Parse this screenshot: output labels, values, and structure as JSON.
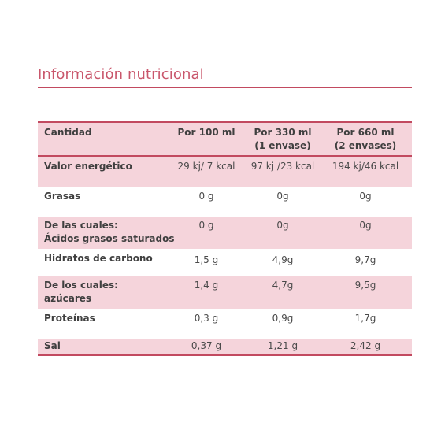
{
  "title": "Información nutricional",
  "headers": [
    "Cantidad",
    "Por 100 ml",
    "Por 330 ml\n(1 envase)",
    "Por 660 ml\n(2 envases)"
  ],
  "rows": [
    {
      "label": "Valor energético",
      "v1": "29 kj/ 7 kcal",
      "v2": "97 kj /23 kcal",
      "v3": "194 kj/46 kcal"
    },
    {
      "label": "Grasas",
      "v1": "0 g",
      "v2": "0g",
      "v3": "0g"
    },
    {
      "label": "De las cuales:\nÁcidos grasos saturados",
      "v1": "0 g",
      "v2": "0g",
      "v3": "0g"
    },
    {
      "label": "Hidratos de carbono",
      "v1": "1,5 g",
      "v2": "4,9g",
      "v3": "9,7g"
    },
    {
      "label": "De los cuales:\nazúcares",
      "v1": "1,4 g",
      "v2": "4,7g",
      "v3": "9,5g"
    },
    {
      "label": "Proteínas",
      "v1": "0,3 g",
      "v2": "0,9g",
      "v3": "1,7g"
    },
    {
      "label": "Sal",
      "v1": "0,37 g",
      "v2": "1,21 g",
      "v3": "2,42 g"
    }
  ],
  "colors": {
    "accent": "#c24a60",
    "row_shade": "#f5d4db"
  }
}
